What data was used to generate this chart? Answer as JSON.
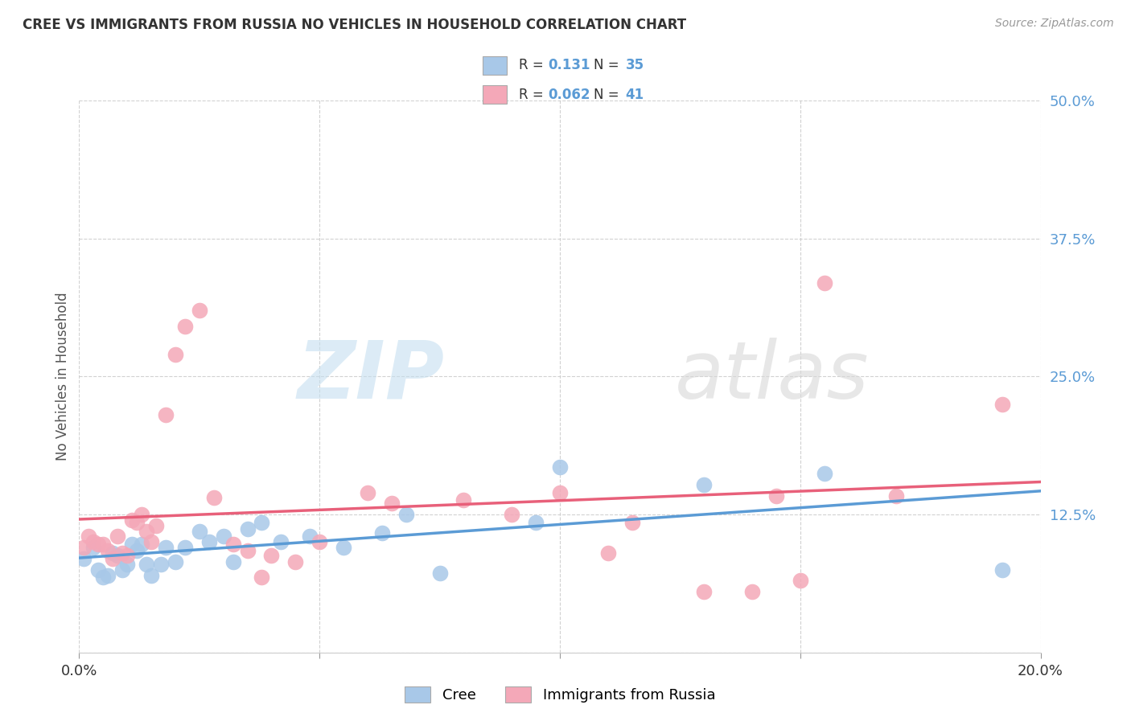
{
  "title": "CREE VS IMMIGRANTS FROM RUSSIA NO VEHICLES IN HOUSEHOLD CORRELATION CHART",
  "source": "Source: ZipAtlas.com",
  "ylabel": "No Vehicles in Household",
  "xlim": [
    0.0,
    0.2
  ],
  "ylim": [
    0.0,
    0.5
  ],
  "xticks": [
    0.0,
    0.05,
    0.1,
    0.15,
    0.2
  ],
  "yticks": [
    0.0,
    0.125,
    0.25,
    0.375,
    0.5
  ],
  "ytick_labels": [
    "",
    "12.5%",
    "25.0%",
    "37.5%",
    "50.0%"
  ],
  "xtick_labels": [
    "0.0%",
    "",
    "",
    "",
    "20.0%"
  ],
  "cree_color": "#a8c8e8",
  "russia_color": "#f4a8b8",
  "cree_line_color": "#5b9bd5",
  "russia_line_color": "#e8607a",
  "tick_label_color": "#5b9bd5",
  "cree_R": 0.131,
  "cree_N": 35,
  "russia_R": 0.062,
  "russia_N": 41,
  "cree_x": [
    0.001,
    0.003,
    0.004,
    0.005,
    0.006,
    0.007,
    0.008,
    0.009,
    0.01,
    0.011,
    0.012,
    0.013,
    0.014,
    0.015,
    0.017,
    0.018,
    0.02,
    0.022,
    0.025,
    0.027,
    0.03,
    0.032,
    0.035,
    0.038,
    0.042,
    0.048,
    0.055,
    0.063,
    0.068,
    0.075,
    0.095,
    0.1,
    0.13,
    0.155,
    0.192
  ],
  "cree_y": [
    0.085,
    0.095,
    0.075,
    0.068,
    0.07,
    0.09,
    0.088,
    0.075,
    0.08,
    0.098,
    0.092,
    0.098,
    0.08,
    0.07,
    0.08,
    0.095,
    0.082,
    0.095,
    0.11,
    0.1,
    0.105,
    0.082,
    0.112,
    0.118,
    0.1,
    0.105,
    0.095,
    0.108,
    0.125,
    0.072,
    0.118,
    0.168,
    0.152,
    0.162,
    0.075
  ],
  "russia_x": [
    0.001,
    0.002,
    0.003,
    0.004,
    0.005,
    0.006,
    0.007,
    0.008,
    0.009,
    0.01,
    0.011,
    0.012,
    0.013,
    0.014,
    0.015,
    0.016,
    0.018,
    0.02,
    0.022,
    0.025,
    0.028,
    0.032,
    0.035,
    0.038,
    0.04,
    0.045,
    0.05,
    0.06,
    0.065,
    0.08,
    0.09,
    0.1,
    0.11,
    0.115,
    0.13,
    0.14,
    0.145,
    0.15,
    0.155,
    0.17,
    0.192
  ],
  "russia_y": [
    0.095,
    0.105,
    0.1,
    0.098,
    0.098,
    0.092,
    0.085,
    0.105,
    0.09,
    0.088,
    0.12,
    0.118,
    0.125,
    0.11,
    0.1,
    0.115,
    0.215,
    0.27,
    0.295,
    0.31,
    0.14,
    0.098,
    0.092,
    0.068,
    0.088,
    0.082,
    0.1,
    0.145,
    0.135,
    0.138,
    0.125,
    0.145,
    0.09,
    0.118,
    0.055,
    0.055,
    0.142,
    0.065,
    0.335,
    0.142,
    0.225
  ]
}
